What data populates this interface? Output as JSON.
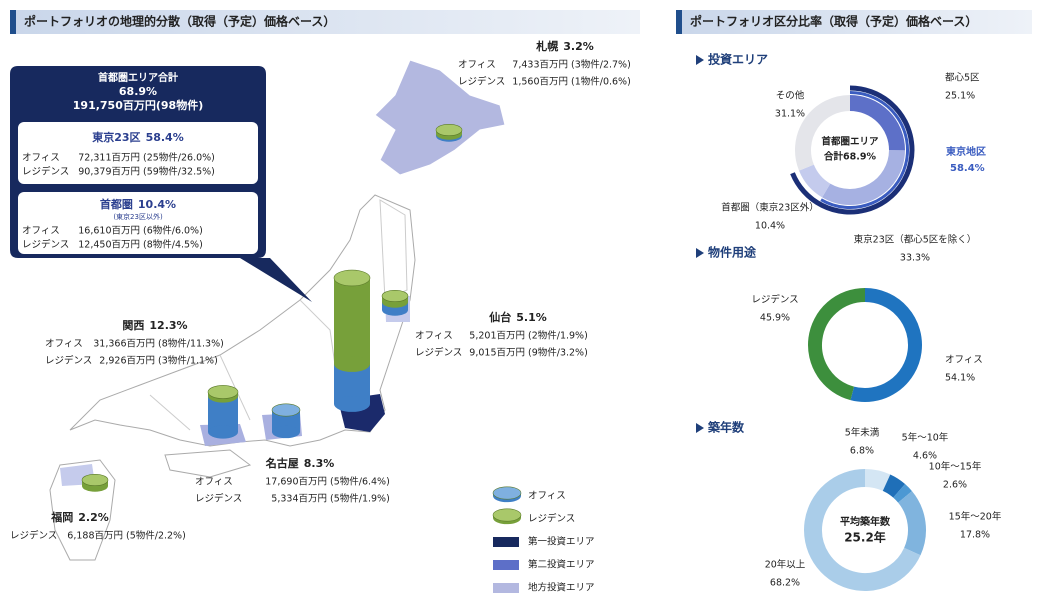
{
  "left": {
    "title": "ポートフォリオの地理的分散（取得（予定）価格ベース）",
    "total": {
      "name": "首都圏エリア合計",
      "share": "68.9%",
      "amount": "191,750百万円(98物件)"
    },
    "regions": [
      {
        "name": "東京23区",
        "share": "58.4%",
        "rows": [
          [
            "オフィス",
            "72,311百万円",
            "(25物件/26.0%)"
          ],
          [
            "レジデンス",
            "90,379百万円",
            "(59物件/32.5%)"
          ]
        ]
      },
      {
        "name": "首都圏",
        "share": "10.4%",
        "note": "(東京23区以外)",
        "rows": [
          [
            "オフィス",
            "16,610百万円",
            "(6物件/6.0%)"
          ],
          [
            "レジデンス",
            "12,450百万円",
            "(8物件/4.5%)"
          ]
        ]
      },
      {
        "name": "札幌",
        "share": "3.2%",
        "rows": [
          [
            "オフィス",
            "7,433百万円",
            "(3物件/2.7%)"
          ],
          [
            "レジデンス",
            "1,560百万円",
            "(1物件/0.6%)"
          ]
        ]
      },
      {
        "name": "仙台",
        "share": "5.1%",
        "rows": [
          [
            "オフィス",
            "5,201百万円",
            "(2物件/1.9%)"
          ],
          [
            "レジデンス",
            "9,015百万円",
            "(9物件/3.2%)"
          ]
        ]
      },
      {
        "name": "関西",
        "share": "12.3%",
        "rows": [
          [
            "オフィス",
            "31,366百万円",
            "(8物件/11.3%)"
          ],
          [
            "レジデンス",
            "2,926百万円",
            "(3物件/1.1%)"
          ]
        ]
      },
      {
        "name": "名古屋",
        "share": "8.3%",
        "rows": [
          [
            "オフィス",
            "17,690百万円",
            "(5物件/6.4%)"
          ],
          [
            "レジデンス",
            "5,334百万円",
            "(5物件/1.9%)"
          ]
        ]
      },
      {
        "name": "福岡",
        "share": "2.2%",
        "rows": [
          [
            "レジデンス",
            "6,188百万円",
            "(5物件/2.2%)"
          ]
        ]
      }
    ],
    "legend": [
      "オフィス",
      "レジデンス",
      "第一投資エリア",
      "第二投資エリア",
      "地方投資エリア"
    ]
  },
  "right": {
    "title": "ポートフォリオ区分比率（取得（予定）価格ベース）"
  },
  "chart_data": [
    {
      "type": "pie",
      "title": "投資エリア",
      "categories": [
        "都心5区",
        "東京23区（都心5区を除く）",
        "首都圏（東京23区外）",
        "その他"
      ],
      "values": [
        25.1,
        33.3,
        10.4,
        31.1
      ],
      "value_labels": [
        "25.1%",
        "33.3%",
        "10.4%",
        "31.1%"
      ],
      "colors": [
        "#5d70c8",
        "#a6b1e2",
        "#c4cbed",
        "#e4e5ea"
      ],
      "outer": {
        "categories": [
          "首都圏エリア",
          "東京地区"
        ],
        "values": [
          68.9,
          58.4
        ],
        "value_labels": [
          "合計68.9%",
          "58.4%"
        ],
        "colors": [
          "#1b2f77",
          "#3a5cc0"
        ]
      }
    },
    {
      "type": "pie",
      "title": "物件用途",
      "categories": [
        "オフィス",
        "レジデンス"
      ],
      "values": [
        54.1,
        45.9
      ],
      "value_labels": [
        "54.1%",
        "45.9%"
      ],
      "colors": [
        "#1f74c0",
        "#3d8f3d"
      ]
    },
    {
      "type": "pie",
      "title": "築年数",
      "categories": [
        "5年未満",
        "5年～10年",
        "10年～15年",
        "15年～20年",
        "20年以上"
      ],
      "values": [
        6.8,
        4.6,
        2.6,
        17.8,
        68.2
      ],
      "value_labels": [
        "6.8%",
        "4.6%",
        "2.6%",
        "17.8%",
        "68.2%"
      ],
      "colors": [
        "#d4e6f4",
        "#1f6fb8",
        "#4c98d3",
        "#80b4de",
        "#aacde9"
      ],
      "center": {
        "name": "平均築年数",
        "label": "25.2年"
      }
    }
  ]
}
